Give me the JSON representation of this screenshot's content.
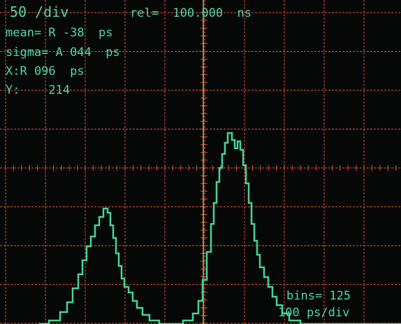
{
  "readouts": {
    "scale": "50 /div",
    "rel": "rel=  100.000  ns",
    "mean": "mean= R -38  ps",
    "sigma": "sigma= A 044  ps",
    "x": "X:R 096  ps",
    "y": "Y:    214"
  },
  "footer": {
    "bins": "bins= 125",
    "time_scale": "100 ps/div"
  }
}
